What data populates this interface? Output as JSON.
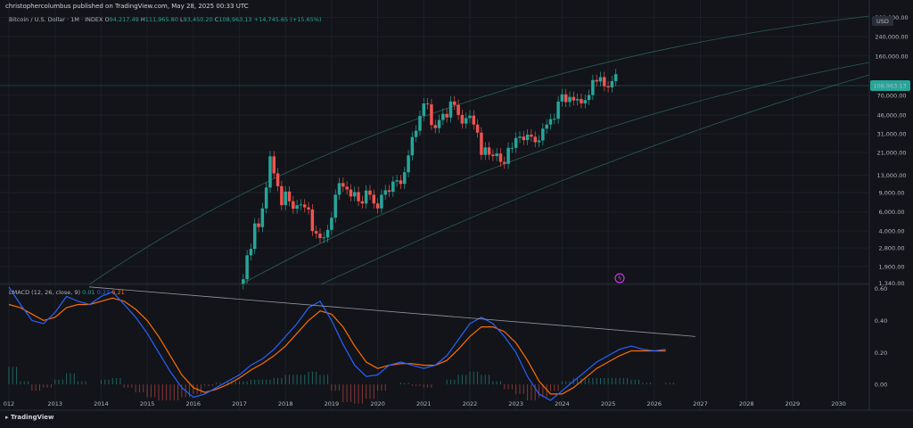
{
  "header": {
    "published_by": "christophercolumbus published on TradingView.com, May 28, 2025 00:33 UTC"
  },
  "symbol": {
    "name": "Bitcoin / U.S. Dollar · 1M · INDEX",
    "open_label": "O",
    "open": "94,217.49",
    "high_label": "H",
    "high": "111,965.80",
    "low_label": "L",
    "low": "93,450.20",
    "close_label": "C",
    "close": "108,963.13",
    "change": "+14,745.65 (+15.65%)"
  },
  "currency": "USD",
  "last_price": "108,963.13",
  "macd": {
    "label": "LMACD (12, 26, close, 9)",
    "hist": "0.01",
    "macd": "0.22",
    "signal": "0.21"
  },
  "footer": {
    "logo_text": "TradingView"
  },
  "colors": {
    "background": "#121419",
    "up": "#26a69a",
    "down": "#ef5350",
    "macd_line": "#2962ff",
    "signal_line": "#ff6d00",
    "channel": "#2a5e55"
  },
  "chart_data": [
    {
      "type": "candlestick",
      "scale": "log",
      "xlabel": "",
      "ylabel": "",
      "x_ticks": [
        "012",
        "2013",
        "2014",
        "2015",
        "2016",
        "2017",
        "2018",
        "2019",
        "2020",
        "2021",
        "2022",
        "2023",
        "2024",
        "2025",
        "2026",
        "2027",
        "2028",
        "2029",
        "2030"
      ],
      "y_ticks": [
        "360,000.00",
        "240,000.00",
        "160,000.00",
        "70,000.00",
        "46,000.00",
        "31,000.00",
        "21,000.00",
        "13,000.00",
        "9,000.00",
        "6,000.00",
        "4,000.00",
        "2,800.00",
        "1,900.00",
        "1,340.00"
      ],
      "y_tick_values": [
        360000,
        240000,
        160000,
        70000,
        46000,
        31000,
        21000,
        13000,
        9000,
        6000,
        4000,
        2800,
        1900,
        1340
      ],
      "ylim": [
        1300,
        520000
      ],
      "series": [
        {
          "close": [
            1300,
            1450,
            2400,
            2750,
            4700,
            4350,
            6450,
            10000,
            19300,
            13500,
            10300,
            6900,
            9200,
            7500,
            6400,
            6900,
            7000,
            6600,
            6300,
            4000,
            3800,
            3450,
            3500,
            4100,
            5300,
            8600,
            11000,
            10200,
            9600,
            8300,
            9100,
            7500,
            7150,
            9400,
            8600,
            7150,
            6450,
            8600,
            9450,
            9150,
            11350,
            11650,
            10800,
            13800,
            19700,
            29000,
            33100,
            45200,
            58800,
            57700,
            37300,
            35000,
            41500,
            47200,
            43800,
            61300,
            57000,
            46200,
            38500,
            43200,
            45500,
            37700,
            31800,
            19900,
            23300,
            20000,
            19400,
            20500,
            17200,
            16500,
            23100,
            23100,
            28500,
            29300,
            27200,
            30500,
            29200,
            26000,
            27000,
            34600,
            37700,
            42300,
            42600,
            61200,
            71300,
            60600,
            67500,
            62700,
            64600,
            58900,
            63300,
            70200,
            96400,
            93400,
            102400,
            84400,
            82500,
            94200,
            108963
          ]
        }
      ],
      "annotations": [
        "108,963.13"
      ]
    },
    {
      "type": "line",
      "title": "LMACD (12, 26, close, 9)",
      "y_ticks": [
        "0.60",
        "0.40",
        "0.20",
        "0.00"
      ],
      "ylim": [
        -0.15,
        0.62
      ],
      "x_start": 2012,
      "x_step": 0.25,
      "series": [
        {
          "name": "MACD",
          "values": [
            0.61,
            0.5,
            0.4,
            0.38,
            0.45,
            0.55,
            0.52,
            0.5,
            0.55,
            0.58,
            0.5,
            0.42,
            0.32,
            0.2,
            0.08,
            -0.02,
            -0.08,
            -0.06,
            -0.02,
            0.02,
            0.06,
            0.12,
            0.16,
            0.22,
            0.3,
            0.38,
            0.48,
            0.52,
            0.4,
            0.25,
            0.12,
            0.05,
            0.06,
            0.12,
            0.14,
            0.12,
            0.1,
            0.12,
            0.18,
            0.28,
            0.38,
            0.42,
            0.38,
            0.3,
            0.2,
            0.05,
            -0.06,
            -0.1,
            -0.04,
            0.02,
            0.08,
            0.14,
            0.18,
            0.22,
            0.24,
            0.22,
            0.21,
            0.22
          ]
        },
        {
          "name": "Signal",
          "values": [
            0.5,
            0.48,
            0.44,
            0.4,
            0.42,
            0.48,
            0.5,
            0.5,
            0.52,
            0.54,
            0.52,
            0.47,
            0.4,
            0.3,
            0.18,
            0.06,
            -0.02,
            -0.05,
            -0.03,
            0.0,
            0.04,
            0.09,
            0.13,
            0.18,
            0.24,
            0.32,
            0.4,
            0.46,
            0.44,
            0.36,
            0.24,
            0.14,
            0.1,
            0.12,
            0.13,
            0.13,
            0.12,
            0.12,
            0.15,
            0.22,
            0.3,
            0.36,
            0.36,
            0.33,
            0.26,
            0.15,
            0.02,
            -0.06,
            -0.06,
            -0.02,
            0.04,
            0.1,
            0.14,
            0.18,
            0.21,
            0.21,
            0.21,
            0.21
          ]
        },
        {
          "name": "Histogram",
          "values": [
            0.11,
            0.02,
            -0.04,
            -0.02,
            0.03,
            0.07,
            0.02,
            0.0,
            0.03,
            0.04,
            -0.02,
            -0.05,
            -0.08,
            -0.1,
            -0.1,
            -0.08,
            -0.06,
            -0.01,
            0.01,
            0.02,
            0.02,
            0.03,
            0.03,
            0.04,
            0.06,
            0.06,
            0.08,
            0.06,
            -0.04,
            -0.11,
            -0.12,
            -0.09,
            -0.04,
            0.0,
            0.01,
            -0.01,
            -0.02,
            0.0,
            0.03,
            0.06,
            0.08,
            0.06,
            0.02,
            -0.03,
            -0.06,
            -0.1,
            -0.08,
            -0.04,
            0.02,
            0.04,
            0.04,
            0.04,
            0.04,
            0.04,
            0.03,
            0.01,
            0.0,
            0.01
          ]
        }
      ]
    }
  ]
}
